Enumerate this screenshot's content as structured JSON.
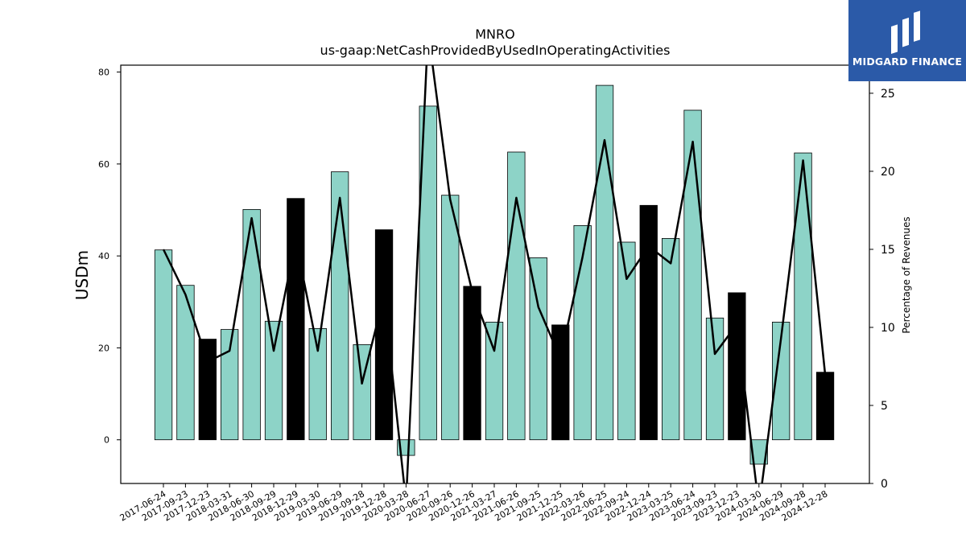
{
  "chart_data": {
    "type": "bar",
    "title": "MNRO",
    "subtitle": "us-gaap:NetCashProvidedByUsedInOperatingActivities",
    "ylabel": "USDm",
    "y2label": "Percentage of Revenues",
    "ylim": [
      -9.5,
      81.5
    ],
    "y2lim": [
      0,
      26.8
    ],
    "yticks": [
      0,
      20,
      40,
      60,
      80
    ],
    "y2ticks": [
      0,
      5,
      10,
      15,
      20,
      25
    ],
    "categories": [
      "2017-06-24",
      "2017-09-23",
      "2017-12-23",
      "2018-03-31",
      "2018-06-30",
      "2018-09-29",
      "2018-12-29",
      "2019-03-30",
      "2019-06-29",
      "2019-09-28",
      "2019-12-28",
      "2020-03-28",
      "2020-06-27",
      "2020-09-26",
      "2020-12-26",
      "2021-03-27",
      "2021-06-26",
      "2021-09-25",
      "2021-12-25",
      "2022-03-26",
      "2022-06-25",
      "2022-09-24",
      "2022-12-24",
      "2023-03-25",
      "2023-06-24",
      "2023-09-23",
      "2023-12-23",
      "2024-03-30",
      "2024-06-29",
      "2024-09-28",
      "2024-12-28"
    ],
    "series": [
      {
        "kind": "bar",
        "values": [
          41.3,
          33.6,
          21.9,
          24.0,
          50.1,
          25.8,
          52.5,
          24.2,
          58.3,
          20.7,
          45.7,
          -3.4,
          72.6,
          53.2,
          33.4,
          25.6,
          62.6,
          39.6,
          25.0,
          46.6,
          77.1,
          43.0,
          51.0,
          43.8,
          71.7,
          26.5,
          32.0,
          -5.3,
          25.6,
          62.4,
          14.7
        ],
        "colors": [
          "#8dd3c7",
          "#8dd3c7",
          "#000000",
          "#8dd3c7",
          "#8dd3c7",
          "#8dd3c7",
          "#000000",
          "#8dd3c7",
          "#8dd3c7",
          "#8dd3c7",
          "#000000",
          "#8dd3c7",
          "#8dd3c7",
          "#8dd3c7",
          "#000000",
          "#8dd3c7",
          "#8dd3c7",
          "#8dd3c7",
          "#000000",
          "#8dd3c7",
          "#8dd3c7",
          "#8dd3c7",
          "#000000",
          "#8dd3c7",
          "#8dd3c7",
          "#8dd3c7",
          "#000000",
          "#8dd3c7",
          "#8dd3c7",
          "#8dd3c7",
          "#000000"
        ]
      },
      {
        "kind": "line",
        "axis": "right",
        "color": "#000000",
        "values": [
          15.0,
          12.1,
          7.8,
          8.5,
          17.0,
          8.5,
          15.6,
          8.5,
          18.3,
          6.4,
          12.0,
          -1.2,
          29.0,
          18.2,
          12.3,
          8.5,
          18.3,
          11.3,
          8.0,
          14.5,
          22.0,
          13.1,
          15.2,
          14.1,
          21.9,
          8.3,
          10.2,
          -1.5,
          9.3,
          20.7,
          7.0
        ]
      }
    ]
  },
  "logo": {
    "text": "MIDGARD FINANCE",
    "bg": "#2b5aa8"
  }
}
